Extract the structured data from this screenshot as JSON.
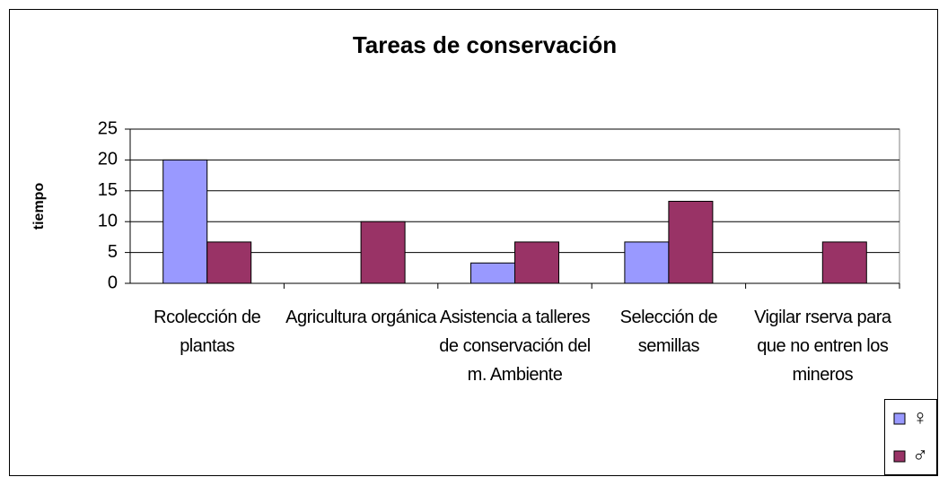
{
  "chart_data": {
    "type": "bar",
    "title": "Tareas de conservación",
    "y_label": "tiempo",
    "categories": [
      "Rcolección de plantas",
      "Agricultura orgánica",
      "Asistencia a talleres de conservación del m. Ambiente",
      "Selección de semillas",
      "Vigilar rserva para que no entren los mineros"
    ],
    "series": [
      {
        "name": "♀",
        "color": "#9999ff",
        "values": [
          20,
          0,
          3.3,
          6.7,
          0
        ]
      },
      {
        "name": "♂",
        "color": "#993366",
        "values": [
          6.7,
          10,
          6.7,
          13.3,
          6.7
        ]
      }
    ],
    "ylim": [
      0,
      25
    ],
    "yticks": [
      0,
      5,
      10,
      15,
      20,
      25
    ],
    "grid": true,
    "legend": "bottom-right"
  }
}
